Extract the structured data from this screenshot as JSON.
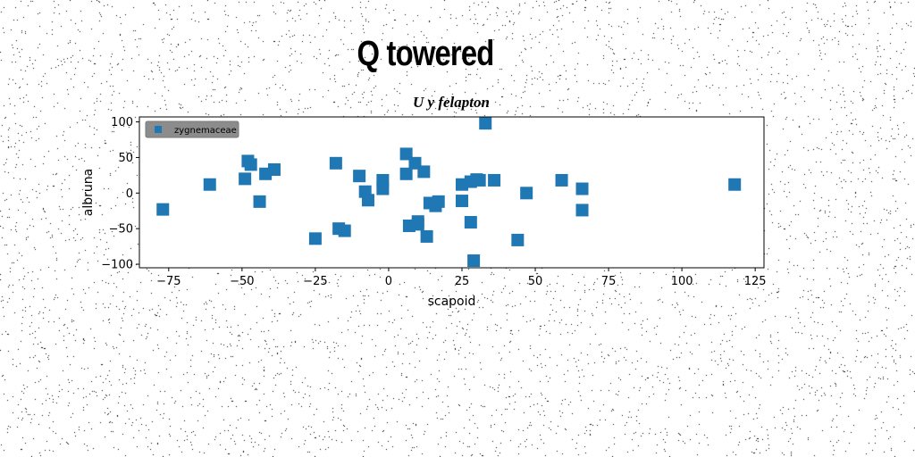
{
  "chart_data": {
    "type": "scatter",
    "title": "Q towered",
    "subtitle": "U y felapton",
    "xlabel": "scapoid",
    "ylabel": "albruna",
    "xlim": [
      -85,
      128
    ],
    "ylim": [
      -105,
      107
    ],
    "xticks": [
      -75,
      -50,
      -25,
      0,
      25,
      50,
      75,
      100,
      125
    ],
    "yticks": [
      -100,
      -50,
      0,
      50,
      100
    ],
    "xtick_labels": [
      "−75",
      "−50",
      "−25",
      "0",
      "25",
      "50",
      "75",
      "100",
      "125"
    ],
    "ytick_labels": [
      "−100",
      "−50",
      "0",
      "50",
      "100"
    ],
    "legend_position": "top-left",
    "grid": false,
    "series": [
      {
        "name": "zygnemaceae",
        "color": "#1f77b4",
        "marker": "square",
        "x": [
          -77,
          -61,
          -49,
          -48,
          -47,
          -44,
          -42,
          -39,
          -25,
          -18,
          -17,
          -15,
          -10,
          -8,
          -7,
          -2,
          -2,
          6,
          6,
          7,
          9,
          10,
          10,
          12,
          13,
          14,
          16,
          17,
          25,
          25,
          28,
          28,
          29,
          30,
          31,
          33,
          36,
          44,
          47,
          59,
          66,
          66,
          118
        ],
        "y": [
          -23,
          12,
          20,
          45,
          40,
          -12,
          27,
          33,
          -64,
          42,
          -50,
          -53,
          24,
          2,
          -10,
          18,
          6,
          55,
          27,
          -46,
          42,
          -44,
          -40,
          30,
          -61,
          -14,
          -18,
          -12,
          12,
          -11,
          -41,
          16,
          -95,
          19,
          18,
          98,
          18,
          -66,
          0,
          18,
          -24,
          6,
          12
        ]
      }
    ]
  }
}
